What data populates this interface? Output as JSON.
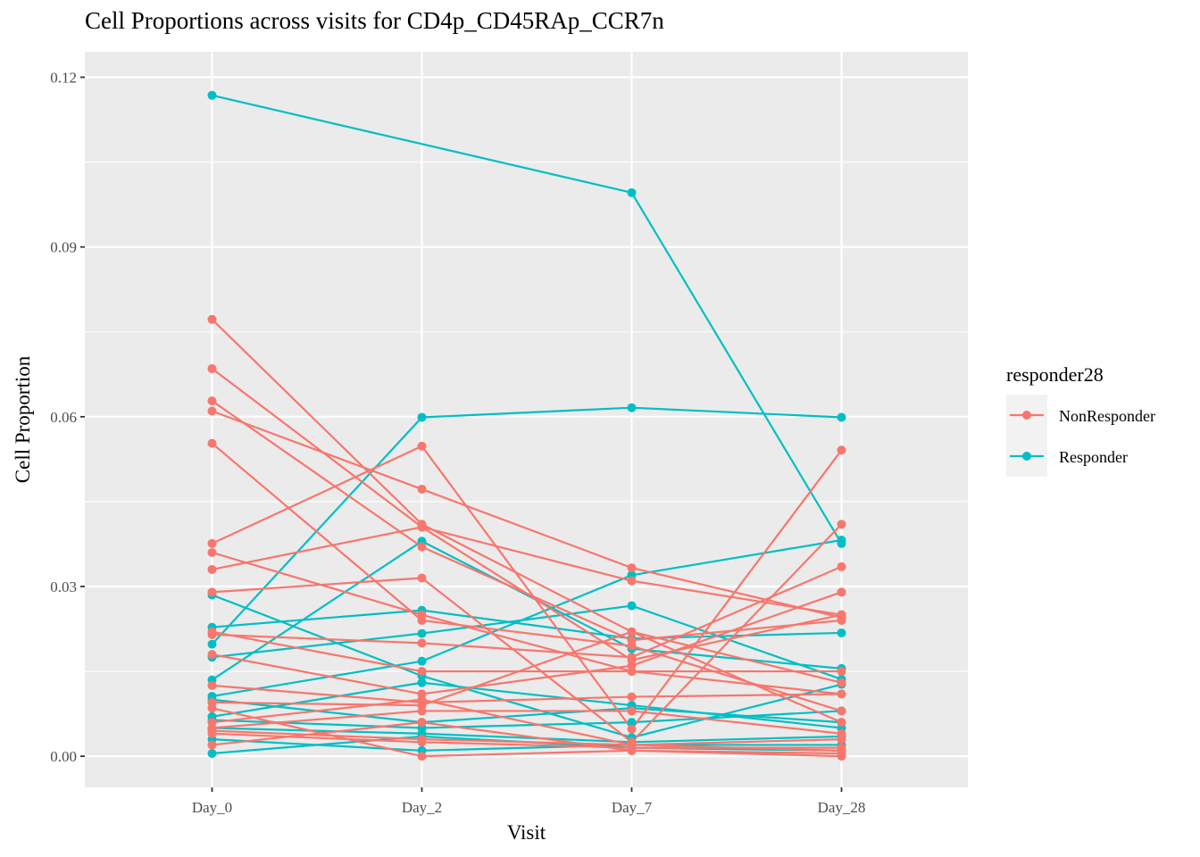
{
  "chart_data": {
    "type": "line",
    "title": "Cell Proportions across visits for CD4p_CD45RAp_CCR7n",
    "xlabel": "Visit",
    "ylabel": "Cell Proportion",
    "categories": [
      "Day_0",
      "Day_2",
      "Day_7",
      "Day_28"
    ],
    "y_ticks": [
      "0.00",
      "0.03",
      "0.06",
      "0.09",
      "0.12"
    ],
    "y_tick_values": [
      0,
      0.03,
      0.06,
      0.09,
      0.12
    ],
    "ylim": [
      -0.0055,
      0.1245
    ],
    "grid": true,
    "legend": {
      "title": "responder28",
      "position": "right",
      "entries": [
        {
          "label": "NonResponder",
          "color": "#F8766D"
        },
        {
          "label": "Responder",
          "color": "#00BFC4"
        }
      ]
    },
    "colors": {
      "NonResponder": "#F8766D",
      "Responder": "#00BFC4",
      "panel": "#EBEBEB",
      "grid": "#FFFFFF"
    },
    "series": [
      {
        "group": "Responder",
        "values": [
          0.1168,
          null,
          0.0996,
          0.0376
        ]
      },
      {
        "group": "Responder",
        "values": [
          0.0198,
          0.0599,
          0.0616,
          0.0599
        ]
      },
      {
        "group": "Responder",
        "values": [
          0.0285,
          0.0142,
          0.0033,
          0.0127
        ]
      },
      {
        "group": "Responder",
        "values": [
          0.0228,
          0.0258,
          0.0208,
          0.0218
        ]
      },
      {
        "group": "Responder",
        "values": [
          0.0175,
          0.0217,
          0.0266,
          0.0136
        ]
      },
      {
        "group": "Responder",
        "values": [
          0.0135,
          0.038,
          0.019,
          0.0155
        ]
      },
      {
        "group": "Responder",
        "values": [
          0.0106,
          0.0168,
          0.032,
          0.0382
        ]
      },
      {
        "group": "Responder",
        "values": [
          0.01,
          0.006,
          0.0085,
          0.006
        ]
      },
      {
        "group": "Responder",
        "values": [
          0.007,
          0.013,
          0.009,
          0.005
        ]
      },
      {
        "group": "Responder",
        "values": [
          0.0064,
          0.005,
          0.006,
          0.008
        ]
      },
      {
        "group": "Responder",
        "values": [
          0.005,
          0.004,
          0.0025,
          0.0035
        ]
      },
      {
        "group": "Responder",
        "values": [
          0.003,
          0.001,
          0.002,
          0.002
        ]
      },
      {
        "group": "Responder",
        "values": [
          0.0005,
          0.0035,
          0.0015,
          0.001
        ]
      },
      {
        "group": "NonResponder",
        "values": [
          0.0772,
          0.041,
          0.022,
          0.013
        ]
      },
      {
        "group": "NonResponder",
        "values": [
          0.0685,
          0.0405,
          0.017,
          0.025
        ]
      },
      {
        "group": "NonResponder",
        "values": [
          0.0628,
          0.037,
          0.0205,
          0.024
        ]
      },
      {
        "group": "NonResponder",
        "values": [
          0.061,
          0.0472,
          0.0333,
          0.0245
        ]
      },
      {
        "group": "NonResponder",
        "values": [
          0.0553,
          0.024,
          0.0195,
          0.008
        ]
      },
      {
        "group": "NonResponder",
        "values": [
          0.0376,
          0.0548,
          0.0048,
          0.0541
        ]
      },
      {
        "group": "NonResponder",
        "values": [
          0.036,
          0.025,
          0.015,
          0.015
        ]
      },
      {
        "group": "NonResponder",
        "values": [
          0.033,
          0.0405,
          0.031,
          0.025
        ]
      },
      {
        "group": "NonResponder",
        "values": [
          0.029,
          0.0315,
          0.0025,
          0.041
        ]
      },
      {
        "group": "NonResponder",
        "values": [
          0.022,
          0.015,
          0.015,
          0.011
        ]
      },
      {
        "group": "NonResponder",
        "values": [
          0.0215,
          0.02,
          0.0175,
          0.0335
        ]
      },
      {
        "group": "NonResponder",
        "values": [
          0.018,
          0.011,
          0.016,
          0.029
        ]
      },
      {
        "group": "NonResponder",
        "values": [
          0.0125,
          0.0095,
          0.0105,
          0.011
        ]
      },
      {
        "group": "NonResponder",
        "values": [
          0.0095,
          0.009,
          0.022,
          0.006
        ]
      },
      {
        "group": "NonResponder",
        "values": [
          0.0085,
          0.0,
          0.001,
          0.0005
        ]
      },
      {
        "group": "NonResponder",
        "values": [
          0.006,
          0.01,
          0.002,
          0.001
        ]
      },
      {
        "group": "NonResponder",
        "values": [
          0.005,
          0.008,
          0.008,
          0.004
        ]
      },
      {
        "group": "NonResponder",
        "values": [
          0.0045,
          0.003,
          0.002,
          0.003
        ]
      },
      {
        "group": "NonResponder",
        "values": [
          0.004,
          0.0025,
          0.0015,
          0.0015
        ]
      },
      {
        "group": "NonResponder",
        "values": [
          0.002,
          0.006,
          0.001,
          0.0
        ]
      }
    ]
  }
}
